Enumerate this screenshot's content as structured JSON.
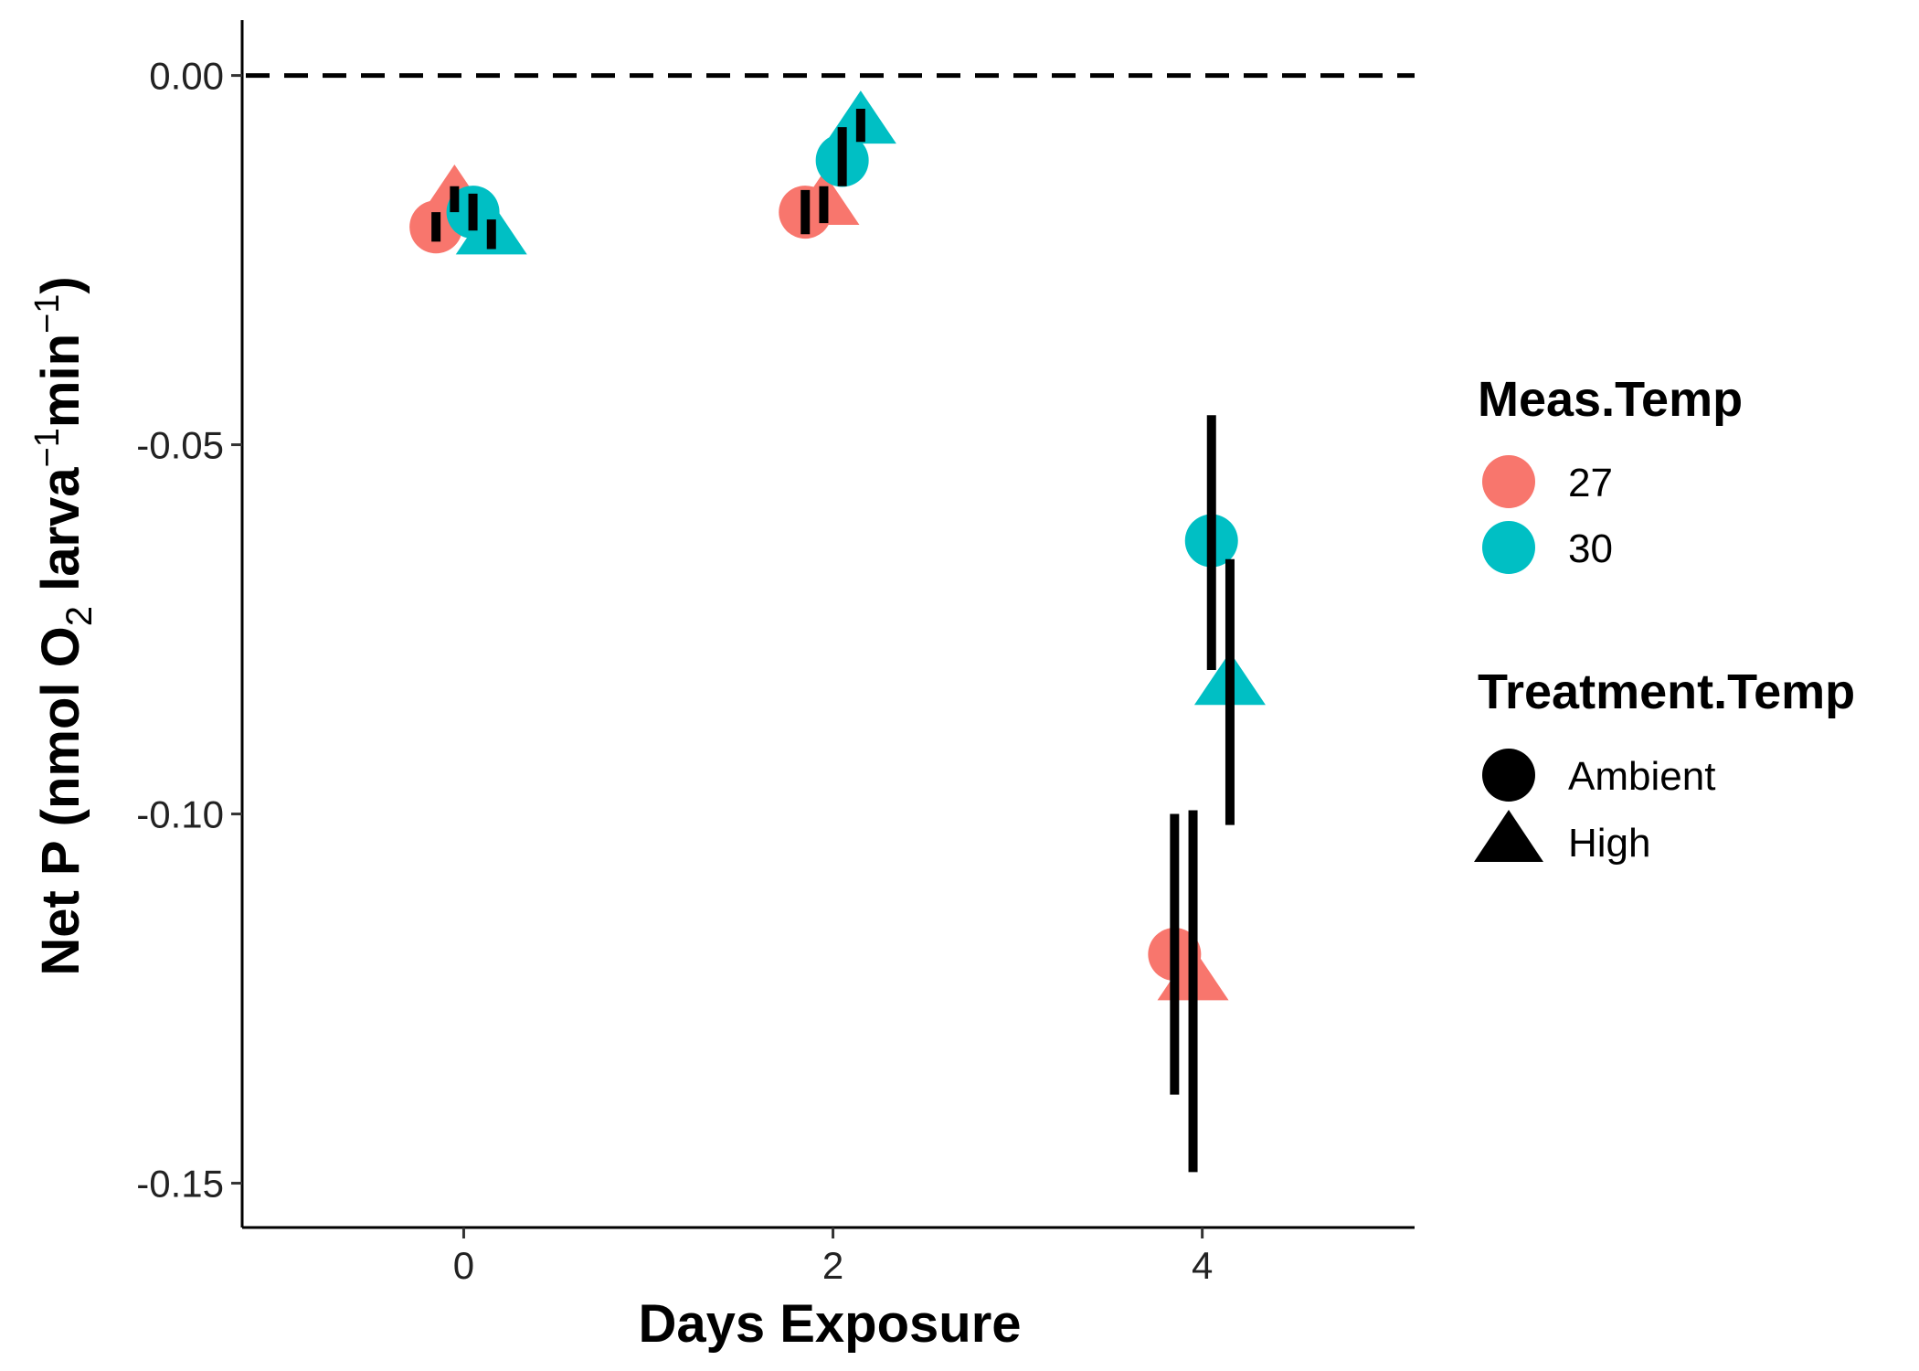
{
  "chart_data": {
    "type": "scatter",
    "xlabel": "Days Exposure",
    "ylabel": {
      "main": "Net P (nmol O",
      "sub": "2",
      "mid": " larva",
      "sup1": "−1",
      "mid2": "min",
      "sup2": "−1",
      "end": ")"
    },
    "xlim": [
      -1.2,
      5.15
    ],
    "ylim": [
      -0.156,
      0.0075
    ],
    "x_ticks": [
      0,
      2,
      4
    ],
    "x_tick_labels": [
      "0",
      "2",
      "4"
    ],
    "y_ticks": [
      0.0,
      -0.05,
      -0.1,
      -0.15
    ],
    "y_tick_labels": [
      "0.00",
      "-0.05",
      "-0.10",
      "-0.15"
    ],
    "reference_line": {
      "y": 0.0,
      "style": "dashed"
    },
    "grid": false,
    "legend_position": "right",
    "colors": {
      "27": "#F8766D",
      "30": "#00BFC4"
    },
    "legends": [
      {
        "title": "Meas.Temp",
        "key": "color",
        "entries": [
          {
            "label": "27",
            "value": "27"
          },
          {
            "label": "30",
            "value": "30"
          }
        ]
      },
      {
        "title": "Treatment.Temp",
        "key": "shape",
        "entries": [
          {
            "label": "Ambient",
            "shape": "circle"
          },
          {
            "label": "High",
            "shape": "triangle"
          }
        ]
      }
    ],
    "points": [
      {
        "x": -0.15,
        "y": -0.0205,
        "ymin": -0.0225,
        "ymax": -0.0185,
        "meas_temp": "27",
        "treatment": "Ambient"
      },
      {
        "x": -0.05,
        "y": -0.0165,
        "ymin": -0.0185,
        "ymax": -0.015,
        "meas_temp": "27",
        "treatment": "High"
      },
      {
        "x": 0.05,
        "y": -0.0185,
        "ymin": -0.021,
        "ymax": -0.016,
        "meas_temp": "30",
        "treatment": "Ambient"
      },
      {
        "x": 0.15,
        "y": -0.0215,
        "ymin": -0.0235,
        "ymax": -0.0195,
        "meas_temp": "30",
        "treatment": "High"
      },
      {
        "x": 1.85,
        "y": -0.0185,
        "ymin": -0.0215,
        "ymax": -0.0155,
        "meas_temp": "27",
        "treatment": "Ambient"
      },
      {
        "x": 1.95,
        "y": -0.0175,
        "ymin": -0.02,
        "ymax": -0.015,
        "meas_temp": "27",
        "treatment": "High"
      },
      {
        "x": 2.05,
        "y": -0.0115,
        "ymin": -0.015,
        "ymax": -0.007,
        "meas_temp": "30",
        "treatment": "Ambient"
      },
      {
        "x": 2.15,
        "y": -0.0065,
        "ymin": -0.009,
        "ymax": -0.0045,
        "meas_temp": "30",
        "treatment": "High"
      },
      {
        "x": 3.85,
        "y": -0.119,
        "ymin": -0.138,
        "ymax": -0.1,
        "meas_temp": "27",
        "treatment": "Ambient"
      },
      {
        "x": 3.95,
        "y": -0.1225,
        "ymin": -0.1485,
        "ymax": -0.0995,
        "meas_temp": "27",
        "treatment": "High"
      },
      {
        "x": 4.05,
        "y": -0.063,
        "ymin": -0.0805,
        "ymax": -0.046,
        "meas_temp": "30",
        "treatment": "Ambient"
      },
      {
        "x": 4.15,
        "y": -0.0825,
        "ymin": -0.1015,
        "ymax": -0.0655,
        "meas_temp": "30",
        "treatment": "High"
      }
    ]
  }
}
